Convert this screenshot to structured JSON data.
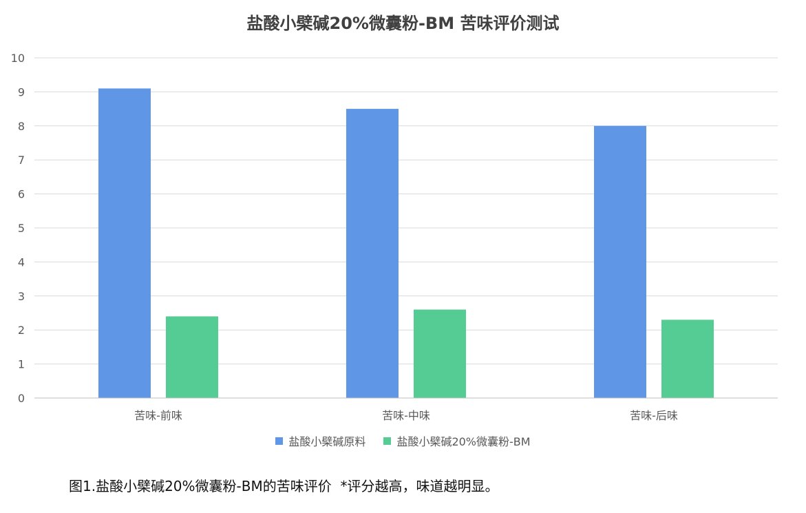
{
  "chart_data": {
    "type": "bar",
    "title": "盐酸小檗碱20%微囊粉-BM 苦味评价测试",
    "categories": [
      "苦味-前味",
      "苦味-中味",
      "苦味-后味"
    ],
    "series": [
      {
        "name": "盐酸小檗碱原料",
        "color": "#5f96e6",
        "values": [
          9.1,
          8.5,
          8.0
        ]
      },
      {
        "name": "盐酸小檗碱20%微囊粉-BM",
        "color": "#54cc93",
        "values": [
          2.4,
          2.6,
          2.3
        ]
      }
    ],
    "ylim": [
      0,
      10
    ],
    "yticks": [
      "0",
      "1",
      "2",
      "3",
      "4",
      "5",
      "6",
      "7",
      "8",
      "9",
      "10"
    ],
    "grid": true,
    "legend_position": "bottom"
  },
  "caption": "图1.盐酸小檗碱20%微囊粉-BM的苦味评价  *评分越高，味道越明显。"
}
